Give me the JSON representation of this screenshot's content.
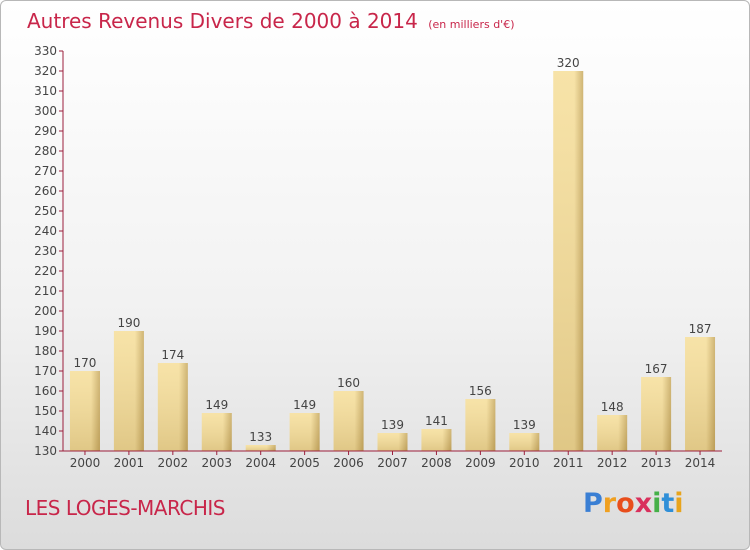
{
  "header": {
    "title": "Autres Revenus Divers de 2000 à 2014",
    "subtitle": "(en milliers d'€)"
  },
  "commune_label": "LES LOGES-MARCHIS",
  "logo": {
    "letters": [
      "P",
      "r",
      "o",
      "x",
      "i",
      "t",
      "i"
    ],
    "colors": [
      "#3a7fd4",
      "#f0a020",
      "#e84e1c",
      "#d9305c",
      "#45b048",
      "#2f8fd8",
      "#e8a41c"
    ]
  },
  "chart_data": {
    "type": "bar",
    "title": "Autres Revenus Divers de 2000 à 2014",
    "subtitle": "(en milliers d'€)",
    "categories": [
      "2000",
      "2001",
      "2002",
      "2003",
      "2004",
      "2005",
      "2006",
      "2007",
      "2008",
      "2009",
      "2010",
      "2011",
      "2012",
      "2013",
      "2014"
    ],
    "values": [
      170,
      190,
      174,
      149,
      133,
      149,
      160,
      139,
      141,
      156,
      139,
      320,
      148,
      167,
      187
    ],
    "data_labels": [
      "170",
      "190",
      "174",
      "149",
      "133",
      "149",
      "160",
      "139",
      "141",
      "156",
      "139",
      "320",
      "148",
      "167",
      "187"
    ],
    "ylim": [
      130,
      330
    ],
    "yticks": [
      "130",
      "140",
      "150",
      "160",
      "170",
      "180",
      "190",
      "200",
      "210",
      "220",
      "230",
      "240",
      "250",
      "260",
      "270",
      "280",
      "290",
      "300",
      "310",
      "320",
      "330"
    ],
    "grid": false,
    "colors": {
      "bar_light": "#f6df9c",
      "bar_dark": "#c9ab62",
      "axis": "#9b1e3c",
      "text": "#c8264a"
    }
  }
}
